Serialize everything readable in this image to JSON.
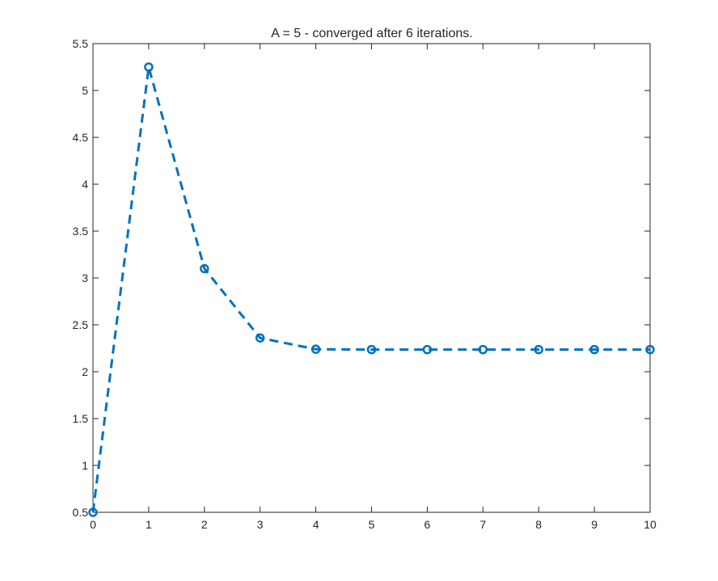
{
  "chart_data": {
    "type": "line",
    "title": "A = 5 - converged after 6 iterations.",
    "xlabel": "",
    "ylabel": "",
    "xlim": [
      0,
      10
    ],
    "ylim": [
      0.5,
      5.5
    ],
    "xticks": [
      "0",
      "1",
      "2",
      "3",
      "4",
      "5",
      "6",
      "7",
      "8",
      "9",
      "10"
    ],
    "yticks": [
      "0.5",
      "1",
      "1.5",
      "2",
      "2.5",
      "3",
      "3.5",
      "4",
      "4.5",
      "5",
      "5.5"
    ],
    "grid": false,
    "series": [
      {
        "line_style": "dashed",
        "marker": "circle",
        "color": "#0072BD",
        "x": [
          0,
          1,
          2,
          3,
          4,
          5,
          6,
          7,
          8,
          9,
          10
        ],
        "y": [
          0.5,
          5.25,
          3.1,
          2.36,
          2.24,
          2.236,
          2.236,
          2.236,
          2.236,
          2.236,
          2.236
        ]
      }
    ]
  },
  "colors": {
    "axis": "#262626",
    "series": "#0072BD",
    "background": "#ffffff"
  }
}
